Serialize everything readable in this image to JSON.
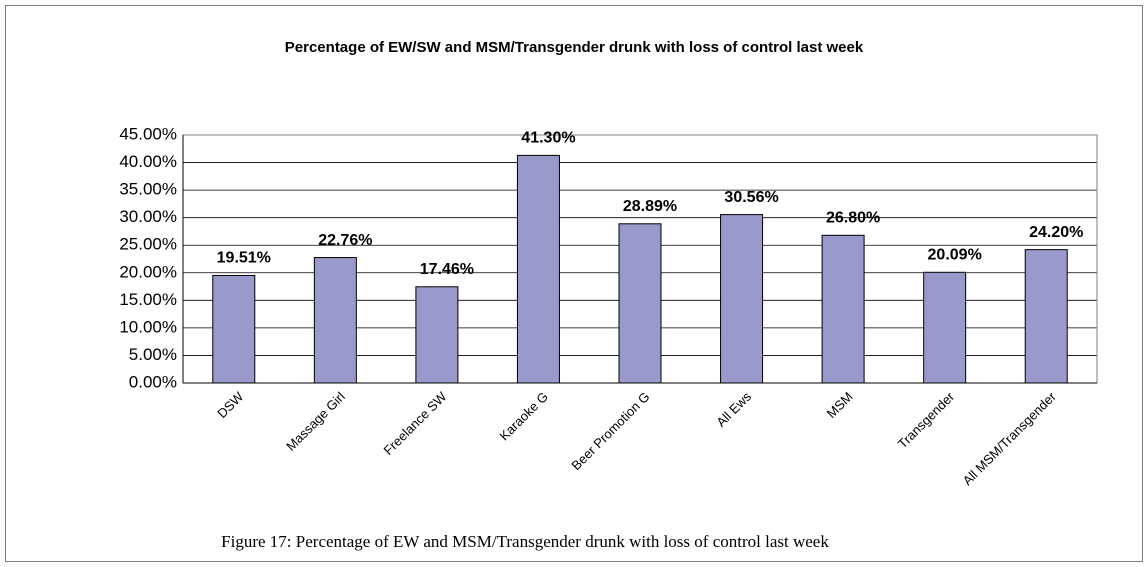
{
  "chart_data": {
    "type": "bar",
    "title": "Percentage of EW/SW and MSM/Transgender drunk with loss of control last week",
    "caption": "Figure 17: Percentage of EW and MSM/Transgender drunk with loss of control last week",
    "categories": [
      "DSW",
      "Massage Girl",
      "Freelance SW",
      "Karaoke G",
      "Beer Promotion G",
      "All Ews",
      "MSM",
      "Transgender",
      "All MSM/Transgender"
    ],
    "values": [
      19.51,
      22.76,
      17.46,
      41.3,
      28.89,
      30.56,
      26.8,
      20.09,
      24.2
    ],
    "value_labels": [
      "19.51%",
      "22.76%",
      "17.46%",
      "41.30%",
      "28.89%",
      "30.56%",
      "26.80%",
      "20.09%",
      "24.20%"
    ],
    "color": "#9999cc",
    "ylim": [
      0,
      45
    ],
    "yticks": [
      {
        "value": 0,
        "label": "0.00%"
      },
      {
        "value": 5,
        "label": "5.00%"
      },
      {
        "value": 10,
        "label": "10.00%"
      },
      {
        "value": 15,
        "label": "15.00%"
      },
      {
        "value": 20,
        "label": "20.00%"
      },
      {
        "value": 25,
        "label": "25.00%"
      },
      {
        "value": 30,
        "label": "30.00%"
      },
      {
        "value": 35,
        "label": "35.00%"
      },
      {
        "value": 40,
        "label": "40.00%"
      },
      {
        "value": 45,
        "label": "45.00%"
      }
    ],
    "grid": true
  }
}
